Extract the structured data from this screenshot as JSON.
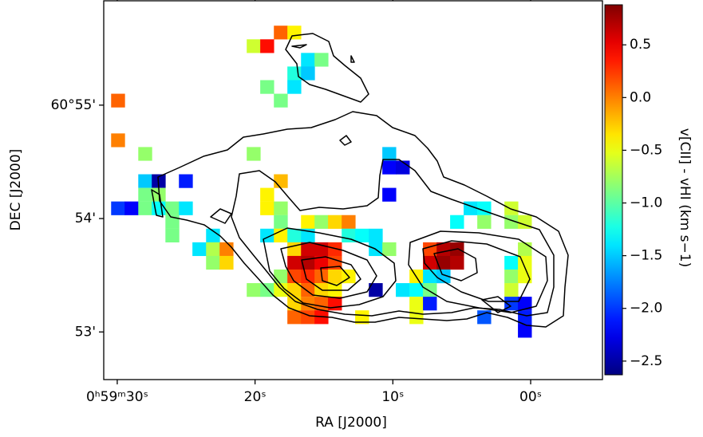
{
  "chart_data": {
    "type": "heatmap",
    "xlabel": "RA [J2000]",
    "ylabel": "DEC [J2000]",
    "colorbar_label": "v[CII] - vHI (km s−1)",
    "colormap": "jet",
    "xlim": [
      30.98,
      -5.21
    ],
    "ylim": [
      52.58,
      55.92
    ],
    "xticks": [
      {
        "value": 30,
        "label": "0ʰ59ᵐ30ˢ"
      },
      {
        "value": 20,
        "label": "20ˢ"
      },
      {
        "value": 10,
        "label": "10ˢ"
      },
      {
        "value": 0,
        "label": "00ˢ"
      }
    ],
    "yticks": [
      {
        "value": 55,
        "label": "60°55'"
      },
      {
        "value": 54,
        "label": "54'"
      },
      {
        "value": 53,
        "label": "53'"
      }
    ],
    "clim": [
      -2.63,
      0.88
    ],
    "cticks": [
      0.5,
      {
        "value": 0,
        "label": "0.0"
      },
      {
        "value": -0.5,
        "label": "−0.5"
      },
      {
        "value": -1,
        "label": "−1.0"
      },
      {
        "value": -1.5,
        "label": "−1.5"
      },
      {
        "value": -2,
        "label": "−2.0"
      },
      {
        "value": -2.5,
        "label": "−2.5"
      }
    ],
    "x": [
      18.13,
      17.15,
      20.1,
      19.12,
      16.16,
      15.18,
      17.15,
      16.16,
      19.12,
      17.15,
      18.13,
      29.94,
      29.94,
      27.97,
      20.1,
      10.26,
      10.26,
      9.28,
      27.97,
      26.99,
      25.02,
      18.13,
      27.97,
      26.99,
      19.12,
      10.26,
      29.94,
      28.96,
      27.97,
      26.99,
      26.0,
      25.02,
      19.12,
      18.13,
      4.36,
      3.37,
      1.4,
      26.0,
      18.13,
      16.16,
      15.18,
      14.2,
      13.21,
      5.34,
      3.37,
      1.4,
      0.42,
      26.0,
      23.05,
      19.12,
      18.13,
      17.15,
      16.16,
      13.21,
      12.23,
      11.24,
      24.04,
      23.05,
      22.07,
      17.15,
      16.16,
      15.18,
      14.2,
      11.24,
      10.26,
      7.31,
      6.32,
      5.34,
      0.42,
      23.05,
      22.07,
      17.15,
      16.16,
      15.18,
      14.2,
      7.31,
      6.32,
      5.34,
      1.4,
      0.42,
      18.13,
      17.15,
      16.16,
      15.18,
      14.2,
      13.21,
      8.29,
      7.31,
      6.32,
      1.4,
      0.42,
      20.1,
      19.12,
      18.13,
      17.15,
      16.16,
      15.18,
      14.2,
      11.24,
      9.28,
      8.29,
      7.31,
      1.4,
      17.15,
      16.16,
      15.18,
      14.2,
      8.29,
      7.31,
      1.4,
      0.42,
      17.15,
      16.16,
      15.18,
      12.23,
      8.29,
      3.37,
      0.42,
      0.42
    ],
    "y": [
      55.64,
      55.64,
      55.52,
      55.52,
      55.4,
      55.4,
      55.28,
      55.28,
      55.16,
      55.16,
      55.04,
      55.04,
      54.69,
      54.57,
      54.57,
      54.57,
      54.45,
      54.45,
      54.33,
      54.33,
      54.33,
      54.33,
      54.21,
      54.21,
      54.21,
      54.21,
      54.09,
      54.09,
      54.09,
      54.09,
      54.09,
      54.09,
      54.09,
      54.09,
      54.09,
      54.09,
      54.09,
      53.97,
      53.97,
      53.97,
      53.97,
      53.97,
      53.97,
      53.97,
      53.97,
      53.97,
      53.97,
      53.85,
      53.85,
      53.85,
      53.85,
      53.85,
      53.85,
      53.85,
      53.85,
      53.85,
      53.73,
      53.73,
      53.73,
      53.73,
      53.73,
      53.73,
      53.73,
      53.73,
      53.73,
      53.73,
      53.73,
      53.73,
      53.73,
      53.61,
      53.61,
      53.61,
      53.61,
      53.61,
      53.61,
      53.61,
      53.61,
      53.61,
      53.61,
      53.61,
      53.49,
      53.49,
      53.49,
      53.49,
      53.49,
      53.49,
      53.49,
      53.49,
      53.49,
      53.49,
      53.49,
      53.37,
      53.37,
      53.37,
      53.37,
      53.37,
      53.37,
      53.37,
      53.37,
      53.37,
      53.37,
      53.37,
      53.37,
      53.25,
      53.25,
      53.25,
      53.25,
      53.25,
      53.25,
      53.25,
      53.25,
      53.13,
      53.13,
      53.13,
      53.13,
      53.13,
      53.13,
      53.13,
      53.01
    ],
    "values": [
      0.1,
      -0.4,
      -0.6,
      0.4,
      -1.4,
      -0.9,
      -1.2,
      -1.5,
      -0.9,
      -1.4,
      -0.9,
      0.1,
      0.0,
      -0.8,
      -0.8,
      -1.5,
      -2.2,
      -2.3,
      -1.5,
      -2.5,
      -2.1,
      -0.2,
      -0.9,
      -0.8,
      -0.4,
      -2.2,
      -2.0,
      -2.2,
      -0.9,
      -1.3,
      -0.9,
      -1.4,
      -0.4,
      -0.8,
      -1.4,
      -1.3,
      -0.6,
      -0.9,
      -0.9,
      -0.4,
      -0.8,
      -0.3,
      0.0,
      -1.3,
      -0.8,
      -0.8,
      -0.6,
      -0.9,
      -1.4,
      -1.4,
      -0.4,
      -1.2,
      -1.4,
      -1.2,
      -1.3,
      -1.4,
      -1.4,
      -0.7,
      0.0,
      -0.3,
      0.6,
      0.6,
      0.3,
      -1.4,
      -0.8,
      0.2,
      0.7,
      0.8,
      -0.7,
      -0.8,
      -0.3,
      0.6,
      0.7,
      0.5,
      0.2,
      0.6,
      0.8,
      0.7,
      -1.3,
      -0.5,
      -0.8,
      0.2,
      0.3,
      0.1,
      -0.3,
      -0.4,
      -0.4,
      -1.4,
      -1.5,
      -0.8,
      -0.5,
      -0.8,
      -0.9,
      -0.5,
      -0.3,
      0.1,
      -0.3,
      -0.4,
      -2.5,
      -1.4,
      -1.3,
      -0.9,
      -0.6,
      -0.3,
      0.0,
      0.1,
      0.4,
      -0.5,
      -2.1,
      -2.0,
      -2.2,
      0.1,
      0.2,
      0.4,
      -0.4,
      -0.5,
      -1.9,
      -2.1,
      -2.2
    ]
  }
}
